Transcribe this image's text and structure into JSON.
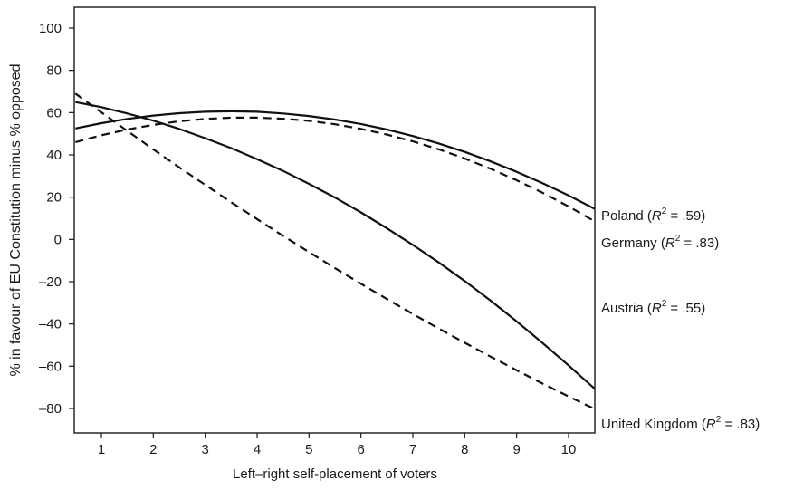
{
  "chart_data": {
    "type": "line",
    "xlabel": "Left–right self-placement of voters",
    "ylabel": "% in favour of EU Constitution minus % opposed",
    "xlim": [
      0.5,
      10.5
    ],
    "ylim": [
      -90,
      110
    ],
    "xticks": [
      1,
      2,
      3,
      4,
      5,
      6,
      7,
      8,
      9,
      10
    ],
    "yticks": [
      100,
      80,
      60,
      40,
      20,
      0,
      -20,
      -40,
      -60,
      -80
    ],
    "ytick_labels": [
      "100",
      "80",
      "60",
      "40",
      "20",
      "0",
      "–20",
      "–40",
      "–60",
      "–80"
    ],
    "grid": false,
    "legend": "direct labels at right end of lines",
    "x": [
      0.5,
      1,
      1.5,
      2,
      2.5,
      3,
      3.5,
      4,
      4.5,
      5,
      5.5,
      6,
      6.5,
      7,
      7.5,
      8,
      8.5,
      9,
      9.5,
      10,
      10.5
    ],
    "series": [
      {
        "name": "Poland",
        "label_prefix": "Poland (",
        "r2": " = .59)",
        "style": "solid",
        "color": "#111111",
        "values": [
          52.5,
          55.0,
          57.0,
          58.6,
          59.7,
          60.4,
          60.6,
          60.4,
          59.6,
          58.4,
          56.7,
          54.6,
          52.0,
          48.9,
          45.4,
          41.4,
          36.9,
          32.0,
          26.6,
          20.8,
          14.5
        ]
      },
      {
        "name": "Germany",
        "label_prefix": "Germany (",
        "r2": " = .83)",
        "style": "dashed",
        "color": "#111111",
        "values": [
          46.0,
          49.3,
          52.0,
          54.2,
          55.9,
          57.0,
          57.6,
          57.6,
          57.1,
          56.1,
          54.5,
          52.3,
          49.6,
          46.4,
          42.6,
          38.3,
          33.4,
          28.0,
          22.1,
          15.6,
          8.6
        ]
      },
      {
        "name": "Austria",
        "label_prefix": "Austria (",
        "r2": " = .55)",
        "style": "solid",
        "color": "#111111",
        "values": [
          65.0,
          62.6,
          59.6,
          56.2,
          52.3,
          47.9,
          43.2,
          38.0,
          32.4,
          26.3,
          19.8,
          12.8,
          5.3,
          -2.6,
          -10.9,
          -19.7,
          -29.0,
          -38.8,
          -49.0,
          -59.6,
          -70.6
        ]
      },
      {
        "name": "United Kingdom",
        "label_prefix": "United Kingdom (",
        "r2": " = .83)",
        "style": "dashed",
        "color": "#111111",
        "values": [
          69.0,
          60.1,
          51.3,
          42.6,
          34.1,
          25.8,
          17.6,
          9.6,
          1.7,
          -6.0,
          -13.6,
          -21.0,
          -28.2,
          -35.3,
          -42.2,
          -48.9,
          -55.5,
          -61.9,
          -68.2,
          -74.3,
          -80.2
        ]
      }
    ],
    "r2_symbol": "R",
    "r2_sup": "2"
  }
}
